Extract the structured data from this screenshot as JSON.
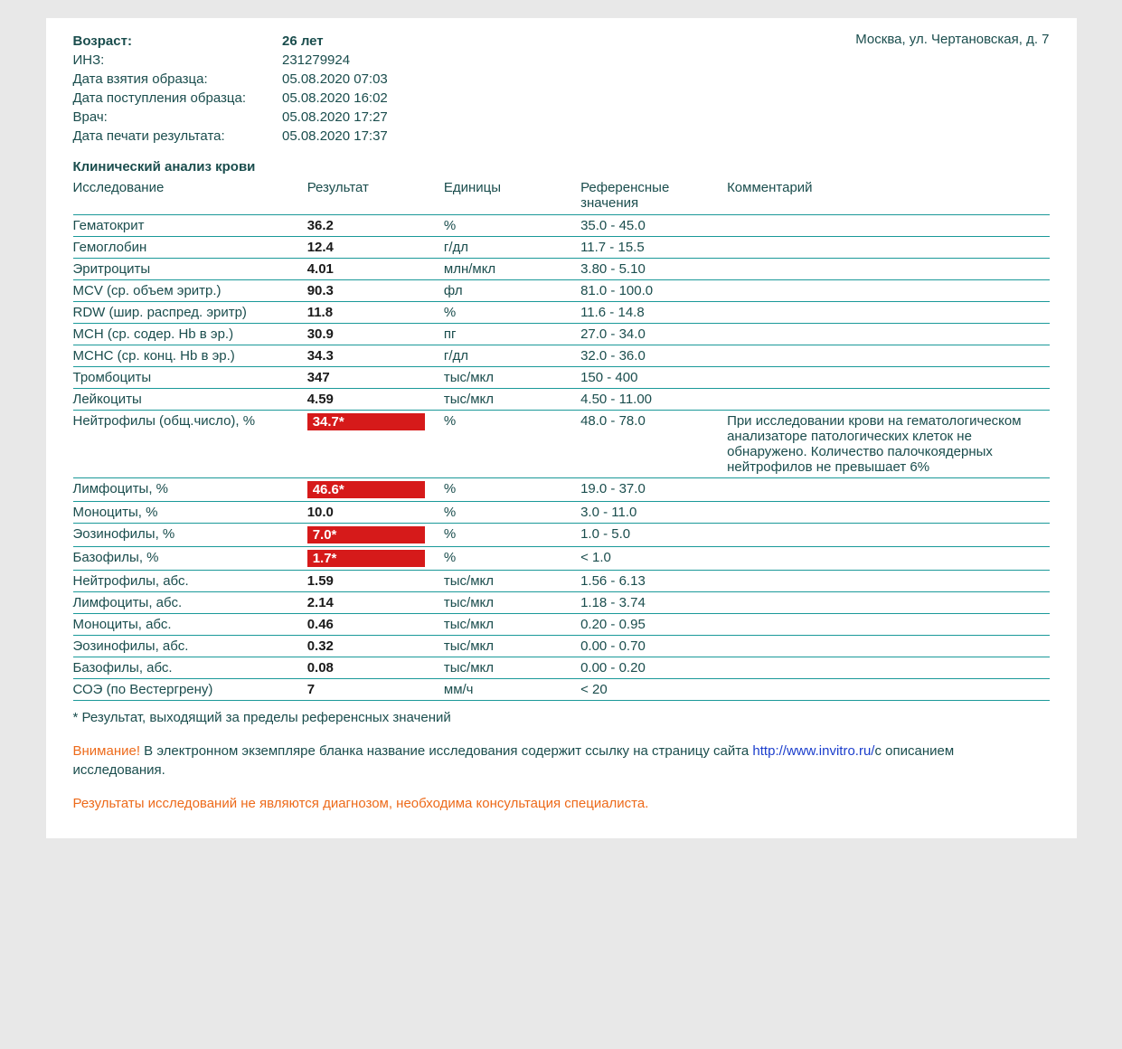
{
  "colors": {
    "text_primary": "#1a4d4d",
    "text_dark": "#1a1a1a",
    "link_blue": "#1a3dcc",
    "border_teal": "#1a9999",
    "abnormal_bg": "#d61a1a",
    "abnormal_text": "#ffffff",
    "warning_orange": "#ed6a1a",
    "page_bg": "#e8e8e8",
    "doc_bg": "#ffffff"
  },
  "header": {
    "rows": [
      {
        "label": "Возраст:",
        "value": "26 лет",
        "bold": true
      },
      {
        "label": "ИНЗ:",
        "value": "231279924",
        "bold": false
      },
      {
        "label": "Дата взятия образца:",
        "value": "05.08.2020 07:03",
        "bold": false
      },
      {
        "label": "Дата поступления образца:",
        "value": "05.08.2020 16:02",
        "bold": false
      },
      {
        "label": "Врач:",
        "value": "05.08.2020 17:27",
        "bold": false
      },
      {
        "label": "Дата печати результата:",
        "value": "05.08.2020 17:37",
        "bold": false
      }
    ],
    "address": "Москва, ул. Чертановская, д. 7"
  },
  "section_title": "Клинический анализ крови",
  "table": {
    "columns": [
      "Исследование",
      "Результат",
      "Единицы",
      "Референсные значения",
      "Комментарий"
    ],
    "rows": [
      {
        "test": "Гематокрит",
        "result": "36.2",
        "abnormal": false,
        "units": "%",
        "ref": "35.0 - 45.0",
        "comment": ""
      },
      {
        "test": "Гемоглобин",
        "result": "12.4",
        "abnormal": false,
        "units": "г/дл",
        "ref": "11.7 - 15.5",
        "comment": ""
      },
      {
        "test": "Эритроциты",
        "result": "4.01",
        "abnormal": false,
        "units": "млн/мкл",
        "ref": "3.80 - 5.10",
        "comment": ""
      },
      {
        "test": "MCV (ср. объем эритр.)",
        "result": "90.3",
        "abnormal": false,
        "units": "фл",
        "ref": "81.0 - 100.0",
        "comment": ""
      },
      {
        "test": "RDW (шир. распред. эритр)",
        "result": "11.8",
        "abnormal": false,
        "units": "%",
        "ref": "11.6 - 14.8",
        "comment": ""
      },
      {
        "test": "MCH (ср. содер. Hb в эр.)",
        "result": "30.9",
        "abnormal": false,
        "units": "пг",
        "ref": "27.0 - 34.0",
        "comment": ""
      },
      {
        "test": "MCHC (ср. конц. Hb в эр.)",
        "result": "34.3",
        "abnormal": false,
        "units": "г/дл",
        "ref": "32.0 - 36.0",
        "comment": ""
      },
      {
        "test": "Тромбоциты",
        "result": "347",
        "abnormal": false,
        "units": "тыс/мкл",
        "ref": "150 - 400",
        "comment": ""
      },
      {
        "test": "Лейкоциты",
        "result": "4.59",
        "abnormal": false,
        "units": "тыс/мкл",
        "ref": "4.50 - 11.00",
        "comment": ""
      },
      {
        "test": "Нейтрофилы (общ.число), %",
        "result": "34.7*",
        "abnormal": true,
        "units": "%",
        "ref": "48.0 - 78.0",
        "comment": "При исследовании крови на гематологическом анализаторе патологических клеток не обнаружено. Количество палочкоядерных нейтрофилов не превышает 6%"
      },
      {
        "test": "Лимфоциты, %",
        "result": "46.6*",
        "abnormal": true,
        "units": "%",
        "ref": "19.0 - 37.0",
        "comment": ""
      },
      {
        "test": "Моноциты, %",
        "result": "10.0",
        "abnormal": false,
        "units": "%",
        "ref": "3.0 - 11.0",
        "comment": ""
      },
      {
        "test": "Эозинофилы, %",
        "result": "7.0*",
        "abnormal": true,
        "units": "%",
        "ref": "1.0 - 5.0",
        "comment": ""
      },
      {
        "test": "Базофилы, %",
        "result": "1.7*",
        "abnormal": true,
        "units": "%",
        "ref": "< 1.0",
        "comment": ""
      },
      {
        "test": "Нейтрофилы, абс.",
        "result": "1.59",
        "abnormal": false,
        "units": "тыс/мкл",
        "ref": "1.56 - 6.13",
        "comment": ""
      },
      {
        "test": "Лимфоциты, абс.",
        "result": "2.14",
        "abnormal": false,
        "units": "тыс/мкл",
        "ref": "1.18 - 3.74",
        "comment": ""
      },
      {
        "test": "Моноциты, абс.",
        "result": "0.46",
        "abnormal": false,
        "units": "тыс/мкл",
        "ref": "0.20 - 0.95",
        "comment": ""
      },
      {
        "test": "Эозинофилы, абс.",
        "result": "0.32",
        "abnormal": false,
        "units": "тыс/мкл",
        "ref": "0.00 - 0.70",
        "comment": ""
      },
      {
        "test": "Базофилы, абс.",
        "result": "0.08",
        "abnormal": false,
        "units": "тыс/мкл",
        "ref": "0.00 - 0.20",
        "comment": ""
      },
      {
        "test": "СОЭ (по Вестергрену)",
        "result": "7",
        "abnormal": false,
        "units": "мм/ч",
        "ref": "< 20",
        "comment": ""
      }
    ]
  },
  "footnote": "* Результат, выходящий за пределы референсных значений",
  "warning": {
    "label": "Внимание!",
    "text_before_link": " В электронном экземпляре бланка название исследования содержит ссылку на страницу сайта ",
    "link": "http://www.invitro.ru/",
    "text_after_link": "с описанием исследования."
  },
  "disclaimer": "Результаты исследований не являются диагнозом, необходима консультация специалиста."
}
